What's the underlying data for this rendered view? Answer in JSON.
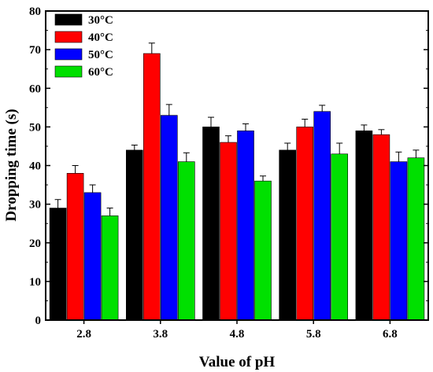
{
  "chart_data": {
    "type": "bar",
    "xlabel": "Value of pH",
    "ylabel": "Dropping time (s)",
    "ylim": [
      0,
      80
    ],
    "yticks": [
      0,
      10,
      20,
      30,
      40,
      50,
      60,
      70,
      80
    ],
    "categories": [
      "2.8",
      "3.8",
      "4.8",
      "5.8",
      "6.8"
    ],
    "legend_position": "top-left",
    "grid": false,
    "series": [
      {
        "name": "30°C",
        "color": "#000000",
        "values": [
          29,
          44,
          50,
          44,
          49
        ],
        "errors": [
          2.2,
          1.3,
          2.5,
          1.8,
          1.5
        ]
      },
      {
        "name": "40°C",
        "color": "#ff0000",
        "values": [
          38,
          69,
          46,
          50,
          48
        ],
        "errors": [
          2.0,
          2.7,
          1.7,
          2.0,
          1.3
        ]
      },
      {
        "name": "50°C",
        "color": "#0000ff",
        "values": [
          33,
          53,
          49,
          54,
          41
        ],
        "errors": [
          2.0,
          2.8,
          1.8,
          1.6,
          2.5
        ]
      },
      {
        "name": "60°C",
        "color": "#00e000",
        "values": [
          27,
          41,
          36,
          43,
          42
        ],
        "errors": [
          2.0,
          2.3,
          1.3,
          2.8,
          2.0
        ]
      }
    ]
  }
}
